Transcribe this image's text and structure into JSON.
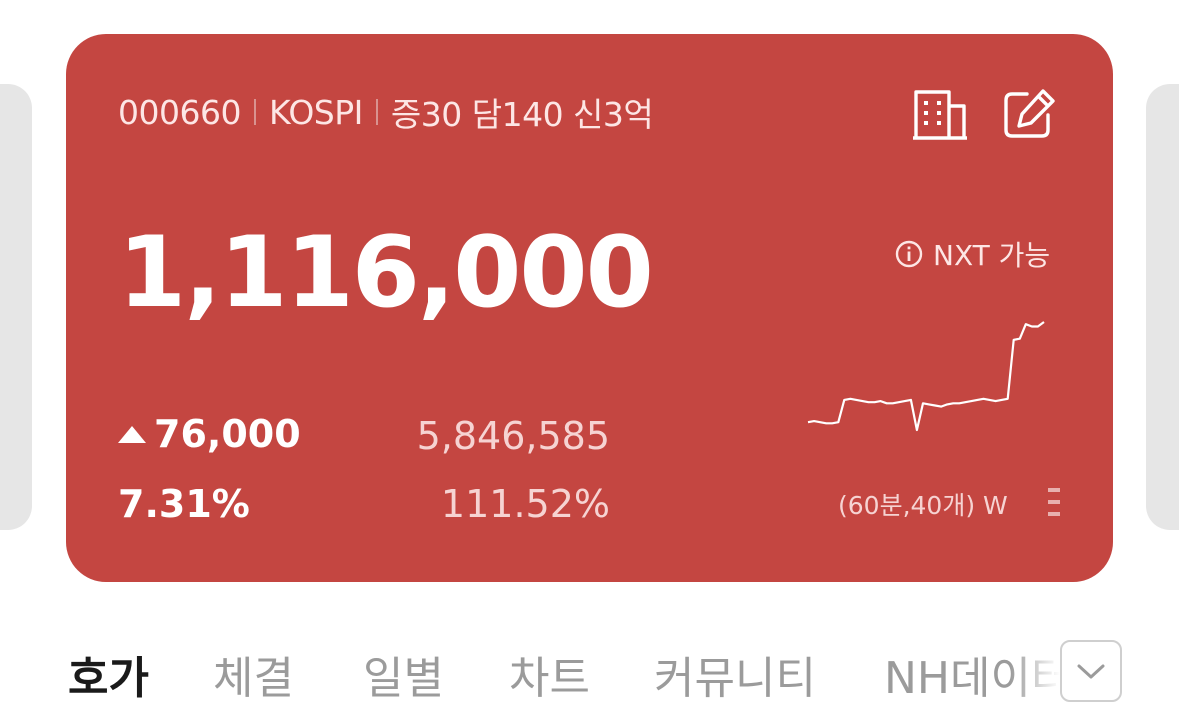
{
  "stock": {
    "code": "000660",
    "market": "KOSPI",
    "margin_info": "증30 담140 신3억",
    "price": "1,116,000",
    "nxt_label": "NXT 가능",
    "change": "76,000",
    "change_rate": "7.31%",
    "volume": "5,846,585",
    "volume_rate": "111.52%",
    "chart_label": "(60분,40개) W",
    "change_direction": "up"
  },
  "icons": {
    "company_info": "building-icon",
    "memo": "edit-icon",
    "info": "info-icon",
    "up": "triangle-up-icon",
    "more": "chevron-down-icon"
  },
  "tabs": [
    {
      "label": "호가",
      "active": true
    },
    {
      "label": "체결",
      "active": false
    },
    {
      "label": "일별",
      "active": false
    },
    {
      "label": "차트",
      "active": false
    },
    {
      "label": "커뮤니티",
      "active": false
    },
    {
      "label": "NH데이터",
      "active": false
    }
  ],
  "colors": {
    "card_background": "#c44641",
    "text": "#ffffff",
    "tab_active": "#1a1a1a",
    "tab_inactive": "#9b9b9b"
  },
  "chart_data": {
    "type": "line",
    "series": [
      {
        "values": [
          10,
          11,
          10,
          9,
          9,
          10,
          30,
          31,
          30,
          29,
          28,
          28,
          29,
          27,
          27,
          28,
          29,
          30,
          3,
          27,
          26,
          25,
          24,
          26,
          27,
          27,
          28,
          29,
          30,
          31,
          30,
          29,
          30,
          31,
          84,
          85,
          98,
          96,
          96,
          100
        ]
      }
    ]
  }
}
